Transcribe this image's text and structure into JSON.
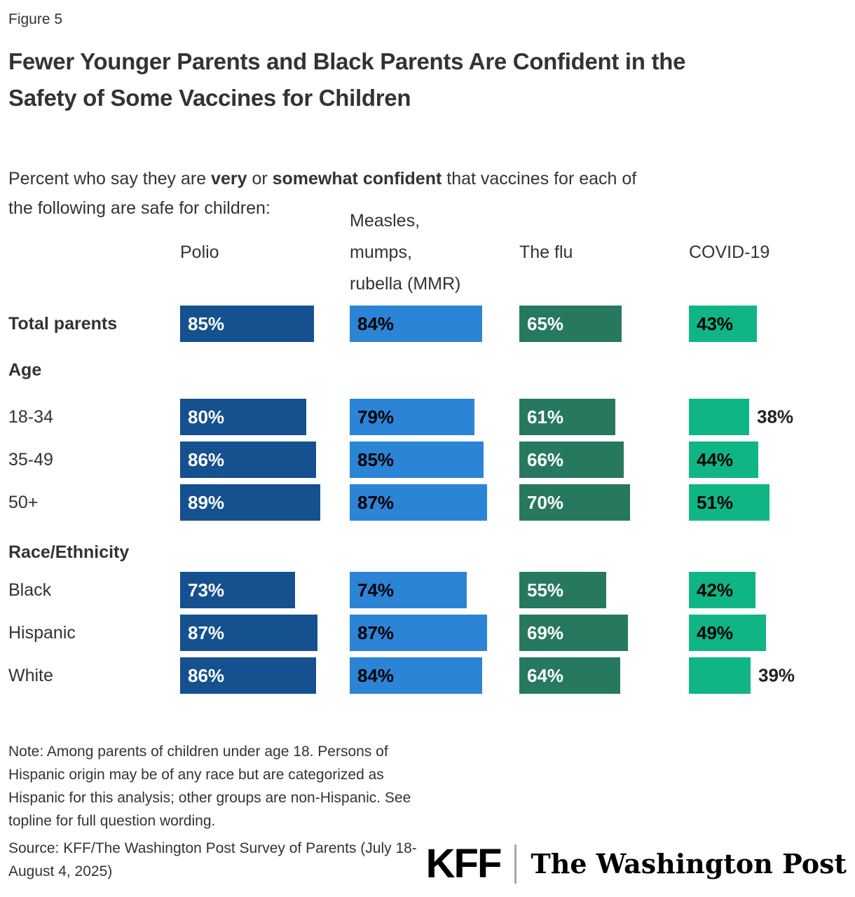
{
  "figure_label": "Figure 5",
  "title": "Fewer Younger Parents and Black Parents Are Confident in the\nSafety of Some Vaccines for Children",
  "subtitle": {
    "p1": "Percent who say they are ",
    "b1": "very",
    "p2": " or ",
    "b2": "somewhat confident",
    "p3": " that vaccines for each of\nthe following are safe for children:"
  },
  "chart_data": {
    "type": "bar",
    "orientation": "horizontal",
    "title": "Fewer Younger Parents and Black Parents Are Confident in the Safety of Some Vaccines for Children",
    "unit": "%",
    "xlim": [
      0,
      100
    ],
    "value_labels": "inside_start",
    "grid": false,
    "legend_position": "column_headers_top",
    "categories": [
      "Total parents",
      "18-34",
      "35-49",
      "50+",
      "Black",
      "Hispanic",
      "White"
    ],
    "category_groups": [
      {
        "label": "Age",
        "categories": [
          "18-34",
          "35-49",
          "50+"
        ]
      },
      {
        "label": "Race/Ethnicity",
        "categories": [
          "Black",
          "Hispanic",
          "White"
        ]
      }
    ],
    "series": [
      {
        "name": "Polio",
        "header_label": "Polio",
        "color": "#15508F",
        "label_color": "#FFFFFF",
        "values": [
          85,
          80,
          86,
          89,
          73,
          87,
          86
        ]
      },
      {
        "name": "Measles, mumps, rubella (MMR)",
        "header_label": "Measles,\nmumps,\nrubella (MMR)",
        "color": "#2B84D6",
        "label_color": "#000000",
        "values": [
          84,
          79,
          85,
          87,
          74,
          87,
          84
        ]
      },
      {
        "name": "The flu",
        "header_label": "The flu",
        "color": "#26795E",
        "label_color": "#FFFFFF",
        "values": [
          65,
          61,
          66,
          70,
          55,
          69,
          64
        ]
      },
      {
        "name": "COVID-19",
        "header_label": "COVID-19",
        "color": "#10B585",
        "label_color": "#000000",
        "values": [
          43,
          38,
          44,
          51,
          42,
          49,
          39
        ]
      }
    ],
    "outside_labels": [
      [
        "18-34",
        "COVID-19"
      ],
      [
        "White",
        "COVID-19"
      ]
    ]
  },
  "note": "Note: Among parents of children under age 18. Persons of\nHispanic origin may be of any race but are categorized as\nHispanic for this analysis; other groups are non-Hispanic. See\ntopline for full question wording.",
  "source": "Source: KFF/The Washington Post Survey of Parents (July 18-\nAugust 4, 2025)",
  "logos": {
    "kff": "KFF",
    "wapo": "The Washington Post"
  }
}
